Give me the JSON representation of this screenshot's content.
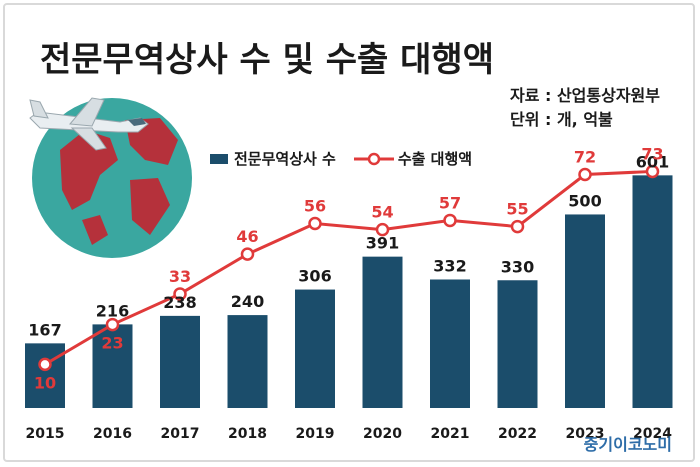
{
  "title": "전문무역상사 수 및 수출 대행액",
  "source_line1": "자료 : 산업통상자원부",
  "source_line2": "단위 : 개, 억불",
  "brand": "중기이코노미",
  "colors": {
    "bar": "#1b4d6b",
    "line": "#e03a3a",
    "line_label": "#e03a3a"
  },
  "chart_data": {
    "type": "bar",
    "categories": [
      "2015",
      "2016",
      "2017",
      "2018",
      "2019",
      "2020",
      "2021",
      "2022",
      "2023",
      "2024"
    ],
    "series": [
      {
        "name": "전문무역상사 수",
        "type": "bar",
        "values": [
          167,
          216,
          238,
          240,
          306,
          391,
          332,
          330,
          500,
          601
        ]
      },
      {
        "name": "수출 대행액",
        "type": "line",
        "values": [
          10,
          23,
          33,
          46,
          56,
          54,
          57,
          55,
          72,
          73
        ]
      }
    ],
    "legend_position": "top-center",
    "grid": false
  }
}
